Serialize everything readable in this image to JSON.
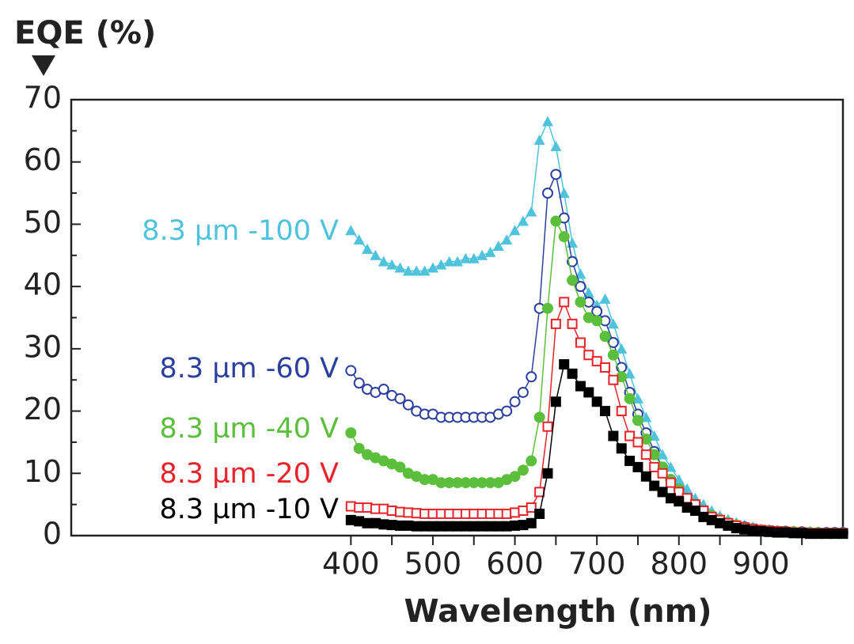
{
  "chart_data": {
    "type": "line",
    "y_label": "EQE (%)",
    "x_label": "Wavelength (nm)",
    "x": [
      400,
      410,
      420,
      430,
      440,
      450,
      460,
      470,
      480,
      490,
      500,
      510,
      520,
      530,
      540,
      550,
      560,
      570,
      580,
      590,
      600,
      610,
      620,
      630,
      640,
      650,
      660,
      670,
      680,
      690,
      700,
      710,
      720,
      730,
      740,
      750,
      760,
      770,
      780,
      790,
      800,
      810,
      820,
      830,
      840,
      850,
      860,
      870,
      880,
      890,
      900,
      910,
      920,
      930,
      940,
      950,
      960,
      970,
      980,
      990,
      1000
    ],
    "series": [
      {
        "name": "8.3 µm -100 V",
        "color": "#4fc3dc",
        "marker": "triangle",
        "values": [
          49,
          47.5,
          46,
          45,
          44,
          43.5,
          43,
          42.5,
          42.5,
          42.5,
          43,
          43.5,
          44,
          44,
          44.5,
          44.5,
          45,
          45.5,
          46.5,
          47.5,
          49,
          50.5,
          52,
          63.5,
          66.5,
          62.5,
          55,
          47,
          42,
          39,
          37,
          38,
          34,
          30,
          26,
          22,
          19,
          16,
          13,
          11,
          9,
          7.5,
          6,
          5,
          4,
          3.2,
          2.6,
          2.1,
          1.7,
          1.4,
          1.1,
          1,
          0.9,
          0.8,
          0.8,
          0.7,
          0.7,
          0.6,
          0.6,
          0.6,
          0.6
        ]
      },
      {
        "name": "8.3 µm -60 V",
        "color": "#2b3f9e",
        "marker": "open-circle",
        "values": [
          26.5,
          24.5,
          23.5,
          23,
          23.5,
          22.5,
          22,
          21,
          20,
          19.5,
          19.5,
          19,
          19,
          19,
          19,
          19,
          19,
          19,
          19.5,
          20,
          21.5,
          23,
          25.5,
          36.5,
          55,
          58,
          51,
          44,
          40,
          37.5,
          36,
          34.5,
          31,
          27,
          23,
          19.5,
          16.5,
          13.5,
          11,
          9,
          7.5,
          6,
          5,
          4,
          3.2,
          2.6,
          2.1,
          1.7,
          1.4,
          1.1,
          0.9,
          0.8,
          0.7,
          0.7,
          0.6,
          0.6,
          0.5,
          0.5,
          0.5,
          0.5,
          0.5
        ]
      },
      {
        "name": "8.3 µm -40 V",
        "color": "#5cbf3c",
        "marker": "circle",
        "values": [
          16.5,
          14,
          13,
          12.5,
          12,
          11.5,
          11,
          10,
          9.5,
          9,
          9,
          8.5,
          8.5,
          8.5,
          8.5,
          8.5,
          8.5,
          8.5,
          8.5,
          9,
          9.5,
          10.5,
          12,
          19,
          36.5,
          50.5,
          48,
          41,
          37.5,
          35,
          34.5,
          32,
          29,
          25.5,
          22,
          18.5,
          15.5,
          13,
          11,
          9,
          7.5,
          6,
          5,
          4,
          3.2,
          2.6,
          2.1,
          1.7,
          1.3,
          1.1,
          0.9,
          0.8,
          0.7,
          0.6,
          0.6,
          0.5,
          0.5,
          0.5,
          0.4,
          0.4,
          0.4
        ]
      },
      {
        "name": "8.3 µm -20 V",
        "color": "#e8232a",
        "marker": "open-square",
        "values": [
          4.7,
          4.5,
          4.5,
          4.3,
          4.3,
          4,
          3.8,
          3.7,
          3.6,
          3.5,
          3.5,
          3.5,
          3.5,
          3.5,
          3.5,
          3.5,
          3.5,
          3.5,
          3.5,
          3.5,
          3.7,
          4,
          4.5,
          7,
          17.5,
          34,
          37.5,
          34,
          31,
          29,
          28,
          27,
          25,
          20,
          16,
          15,
          13,
          11,
          10,
          8.5,
          7,
          6,
          5,
          4,
          3,
          2.5,
          2,
          1.6,
          1.3,
          1.1,
          0.9,
          0.8,
          0.7,
          0.6,
          0.5,
          0.5,
          0.4,
          0.4,
          0.4,
          0.4,
          0.4
        ]
      },
      {
        "name": "8.3 µm -10 V",
        "color": "#000000",
        "marker": "square",
        "values": [
          2.5,
          2.3,
          2,
          2,
          1.8,
          1.7,
          1.6,
          1.6,
          1.5,
          1.5,
          1.5,
          1.5,
          1.5,
          1.5,
          1.5,
          1.5,
          1.5,
          1.5,
          1.5,
          1.5,
          1.6,
          1.7,
          2,
          3.5,
          10,
          21.5,
          27.5,
          26,
          24,
          23,
          21.5,
          20,
          16,
          14,
          12,
          11,
          9.5,
          8,
          7,
          6,
          5.5,
          4.5,
          4,
          3,
          2.5,
          2,
          1.6,
          1.2,
          1,
          0.8,
          0.7,
          0.6,
          0.5,
          0.5,
          0.4,
          0.4,
          0.3,
          0.3,
          0.3,
          0.3,
          0.3
        ]
      }
    ],
    "xlim": [
      59,
      1000
    ],
    "xticks": [
      400,
      500,
      600,
      700,
      800,
      900
    ],
    "xminorticks": [
      450,
      550,
      650,
      750,
      850,
      950
    ],
    "ylim": [
      0,
      70
    ],
    "yticks": [
      0,
      10,
      20,
      30,
      40,
      50,
      60,
      70
    ],
    "yminorticks": [
      5,
      15,
      25,
      35,
      45,
      55,
      65
    ]
  }
}
